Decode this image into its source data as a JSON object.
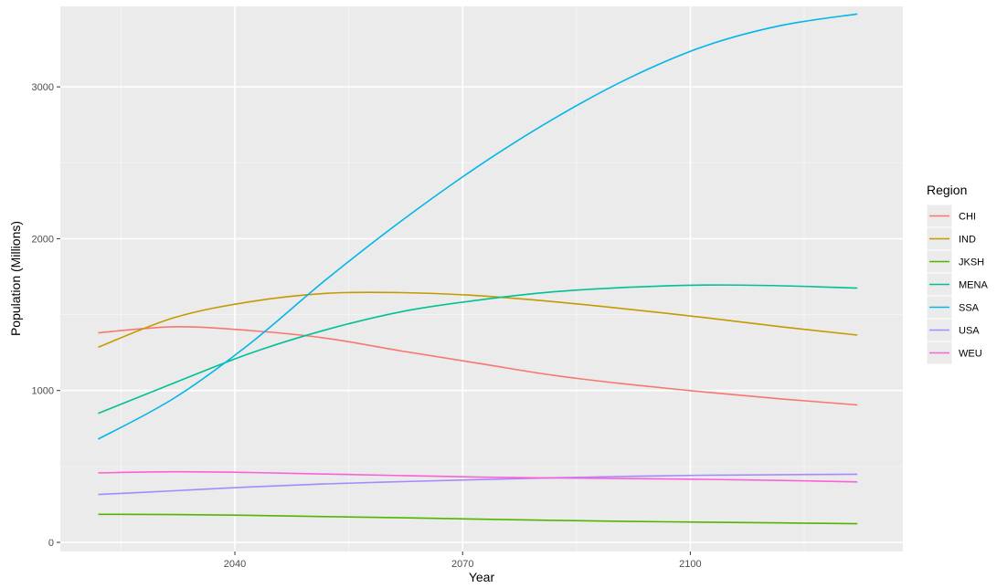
{
  "chart_data": {
    "type": "line",
    "title": "",
    "xlabel": "Year",
    "ylabel": "Population (Millions)",
    "xlim": [
      2017,
      2128
    ],
    "ylim": [
      -60,
      3530
    ],
    "x_ticks": [
      2040,
      2070,
      2100
    ],
    "x_minor_ticks": [
      2025,
      2055,
      2085,
      2115
    ],
    "y_ticks": [
      0,
      1000,
      2000,
      3000
    ],
    "y_minor_ticks": [
      500,
      1500,
      2500
    ],
    "grid": true,
    "legend": {
      "title": "Region",
      "position": "right"
    },
    "x": [
      2022,
      2032,
      2042,
      2052,
      2062,
      2072,
      2082,
      2092,
      2102,
      2112,
      2122
    ],
    "series": [
      {
        "name": "CHI",
        "color": "#F8766D",
        "values": [
          1380,
          1420,
          1395,
          1345,
          1260,
          1180,
          1100,
          1040,
          990,
          945,
          905
        ]
      },
      {
        "name": "IND",
        "color": "#C49A00",
        "values": [
          1285,
          1480,
          1585,
          1640,
          1645,
          1625,
          1585,
          1535,
          1480,
          1420,
          1365
        ]
      },
      {
        "name": "JKSH",
        "color": "#53B400",
        "values": [
          185,
          183,
          178,
          170,
          162,
          153,
          145,
          138,
          133,
          128,
          123
        ]
      },
      {
        "name": "MENA",
        "color": "#00C094",
        "values": [
          850,
          1050,
          1245,
          1400,
          1520,
          1595,
          1650,
          1680,
          1695,
          1690,
          1675
        ]
      },
      {
        "name": "SSA",
        "color": "#00B6EB",
        "values": [
          680,
          950,
          1310,
          1730,
          2120,
          2475,
          2790,
          3060,
          3270,
          3405,
          3480
        ]
      },
      {
        "name": "USA",
        "color": "#A58AFF",
        "values": [
          315,
          340,
          365,
          385,
          400,
          413,
          425,
          435,
          442,
          446,
          449
        ]
      },
      {
        "name": "WEU",
        "color": "#FB61D7",
        "values": [
          458,
          465,
          460,
          450,
          440,
          430,
          424,
          420,
          415,
          408,
          398
        ]
      }
    ]
  }
}
